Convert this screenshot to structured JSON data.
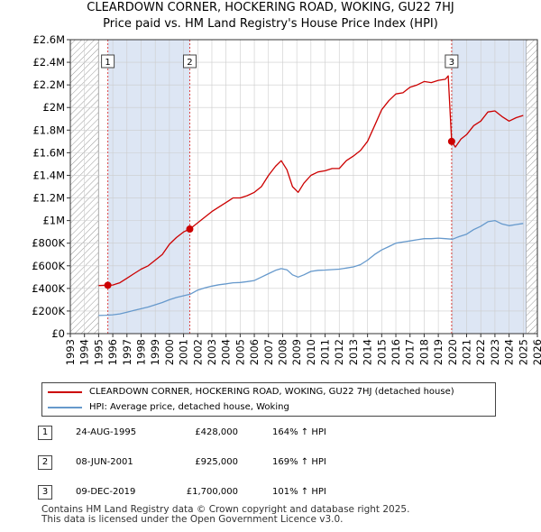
{
  "title_line1": "CLEARDOWN CORNER, HOCKERING ROAD, WOKING, GU22 7HJ",
  "title_line2": "Price paid vs. HM Land Registry's House Price Index (HPI)",
  "colors": {
    "property_line": "#cc0000",
    "hpi_line": "#6699cc",
    "shade": "#dde6f4",
    "hatch": "#999999",
    "grid": "#cccccc",
    "vline": "#dd4444"
  },
  "legend": {
    "property_label": "CLEARDOWN CORNER, HOCKERING ROAD, WOKING, GU22 7HJ (detached house)",
    "hpi_label": "HPI: Average price, detached house, Woking"
  },
  "transactions": [
    {
      "num": "1",
      "date": "24-AUG-1995",
      "price": "£428,000",
      "hpi": "164% ↑ HPI"
    },
    {
      "num": "2",
      "date": "08-JUN-2001",
      "price": "£925,000",
      "hpi": "169% ↑ HPI"
    },
    {
      "num": "3",
      "date": "09-DEC-2019",
      "price": "£1,700,000",
      "hpi": "101% ↑ HPI"
    }
  ],
  "footer_line1": "Contains HM Land Registry data © Crown copyright and database right 2025.",
  "footer_line2": "This data is licensed under the Open Government Licence v3.0.",
  "chart_data": {
    "type": "line",
    "title": "Price paid vs. HM Land Registry's House Price Index (HPI)",
    "xlim": [
      1993,
      2026
    ],
    "ylim": [
      0,
      2600000
    ],
    "x_ticks": [
      1993,
      1994,
      1995,
      1996,
      1997,
      1998,
      1999,
      2000,
      2001,
      2002,
      2003,
      2004,
      2005,
      2006,
      2007,
      2008,
      2009,
      2010,
      2011,
      2012,
      2013,
      2014,
      2015,
      2016,
      2017,
      2018,
      2019,
      2020,
      2021,
      2022,
      2023,
      2024,
      2025,
      2026
    ],
    "y_ticks": [
      0,
      200000,
      400000,
      600000,
      800000,
      1000000,
      1200000,
      1400000,
      1600000,
      1800000,
      2000000,
      2200000,
      2400000,
      2600000
    ],
    "y_tick_labels": [
      "£0",
      "£200K",
      "£400K",
      "£600K",
      "£800K",
      "£1M",
      "£1.2M",
      "£1.4M",
      "£1.6M",
      "£1.8M",
      "£2M",
      "£2.2M",
      "£2.4M",
      "£2.6M"
    ],
    "grid": true,
    "data_range": [
      1995.0,
      2025.2
    ],
    "shaded_periods": [
      [
        1995.65,
        2001.44
      ],
      [
        2019.94,
        2025.2
      ]
    ],
    "sale_markers": [
      {
        "label": "1",
        "x": 1995.65,
        "y": 428000
      },
      {
        "label": "2",
        "x": 2001.44,
        "y": 925000
      },
      {
        "label": "3",
        "x": 2019.94,
        "y": 1700000
      }
    ],
    "series": [
      {
        "name": "CLEARDOWN CORNER, HOCKERING ROAD, WOKING, GU22 7HJ (detached house)",
        "x": [
          1995.0,
          1995.65,
          1996.0,
          1996.5,
          1997.0,
          1997.5,
          1998.0,
          1998.5,
          1999.0,
          1999.5,
          2000.0,
          2000.5,
          2001.0,
          2001.44,
          2001.8,
          2002.5,
          2003.0,
          2003.5,
          2004.0,
          2004.5,
          2005.0,
          2005.5,
          2006.0,
          2006.5,
          2007.0,
          2007.5,
          2007.9,
          2008.3,
          2008.7,
          2009.1,
          2009.5,
          2010.0,
          2010.5,
          2011.0,
          2011.5,
          2012.0,
          2012.5,
          2013.0,
          2013.5,
          2014.0,
          2014.5,
          2015.0,
          2015.5,
          2016.0,
          2016.5,
          2017.0,
          2017.5,
          2018.0,
          2018.5,
          2019.0,
          2019.5,
          2019.7,
          2019.94,
          2020.2,
          2020.6,
          2021.0,
          2021.5,
          2022.0,
          2022.5,
          2023.0,
          2023.5,
          2024.0,
          2024.5,
          2025.0
        ],
        "y": [
          425000,
          428000,
          430000,
          450000,
          490000,
          530000,
          570000,
          600000,
          650000,
          700000,
          790000,
          850000,
          900000,
          925000,
          960000,
          1030000,
          1080000,
          1120000,
          1160000,
          1200000,
          1200000,
          1220000,
          1250000,
          1300000,
          1400000,
          1480000,
          1530000,
          1450000,
          1300000,
          1250000,
          1330000,
          1400000,
          1430000,
          1440000,
          1460000,
          1460000,
          1530000,
          1570000,
          1620000,
          1700000,
          1840000,
          1980000,
          2060000,
          2120000,
          2130000,
          2180000,
          2200000,
          2230000,
          2220000,
          2240000,
          2250000,
          2280000,
          1700000,
          1650000,
          1720000,
          1760000,
          1840000,
          1880000,
          1960000,
          1970000,
          1920000,
          1880000,
          1910000,
          1930000
        ]
      },
      {
        "name": "HPI: Average price, detached house, Woking",
        "x": [
          1995.0,
          1995.5,
          1996.0,
          1996.5,
          1997.0,
          1997.5,
          1998.0,
          1998.5,
          1999.0,
          1999.5,
          2000.0,
          2000.5,
          2001.0,
          2001.5,
          2002.0,
          2002.5,
          2003.0,
          2003.5,
          2004.0,
          2004.5,
          2005.0,
          2005.5,
          2006.0,
          2006.5,
          2007.0,
          2007.5,
          2007.9,
          2008.3,
          2008.7,
          2009.1,
          2009.5,
          2010.0,
          2010.5,
          2011.0,
          2011.5,
          2012.0,
          2012.5,
          2013.0,
          2013.5,
          2014.0,
          2014.5,
          2015.0,
          2015.5,
          2016.0,
          2016.5,
          2017.0,
          2017.5,
          2018.0,
          2018.5,
          2019.0,
          2019.5,
          2020.0,
          2020.5,
          2021.0,
          2021.5,
          2022.0,
          2022.5,
          2023.0,
          2023.5,
          2024.0,
          2024.5,
          2025.0
        ],
        "y": [
          160000,
          163000,
          167000,
          175000,
          190000,
          205000,
          220000,
          235000,
          255000,
          275000,
          300000,
          320000,
          335000,
          350000,
          385000,
          405000,
          420000,
          432000,
          440000,
          450000,
          452000,
          460000,
          470000,
          500000,
          530000,
          560000,
          575000,
          565000,
          520000,
          500000,
          520000,
          550000,
          560000,
          562000,
          566000,
          570000,
          580000,
          590000,
          610000,
          650000,
          700000,
          740000,
          770000,
          800000,
          810000,
          820000,
          830000,
          840000,
          840000,
          845000,
          840000,
          835000,
          860000,
          880000,
          920000,
          950000,
          990000,
          1000000,
          970000,
          955000,
          965000,
          975000
        ]
      }
    ]
  }
}
